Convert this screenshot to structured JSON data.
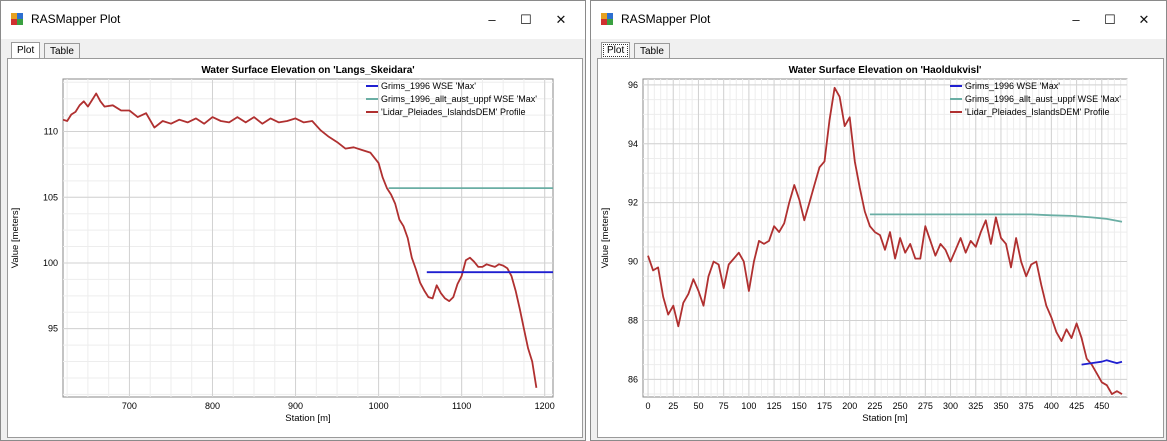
{
  "windows": [
    {
      "title": "RASMapper Plot",
      "controls": {
        "minimize": "–",
        "maximize": "☐",
        "close": "✕"
      },
      "tabs": [
        "Plot",
        "Table"
      ]
    },
    {
      "title": "RASMapper Plot",
      "controls": {
        "minimize": "–",
        "maximize": "☐",
        "close": "✕"
      },
      "tabs": [
        "Plot",
        "Table"
      ]
    }
  ],
  "chart_data": [
    {
      "type": "line",
      "title": "Water Surface Elevation on 'Langs_Skeidara'",
      "xlabel": "Station [m]",
      "ylabel": "Value [meters]",
      "xlim": [
        620,
        1210
      ],
      "ylim": [
        89.8,
        114
      ],
      "xticks": [
        700,
        800,
        900,
        1000,
        1100,
        1200
      ],
      "yticks": [
        95,
        100,
        105,
        110
      ],
      "grid": true,
      "legend_position": "top-right",
      "series": [
        {
          "name": "Grims_1996 WSE 'Max'",
          "color": "#1f1fd0",
          "x": [
            1058,
            1080,
            1100,
            1120,
            1140,
            1160,
            1175,
            1185,
            1200,
            1210
          ],
          "y": [
            99.3,
            99.3,
            99.3,
            99.3,
            99.3,
            99.3,
            99.3,
            99.3,
            99.3,
            99.3
          ]
        },
        {
          "name": "Grims_1996_allt_aust_uppf WSE 'Max'",
          "color": "#6aaea4",
          "x": [
            1012,
            1050,
            1100,
            1150,
            1210
          ],
          "y": [
            105.7,
            105.7,
            105.7,
            105.7,
            105.7
          ]
        },
        {
          "name": "'Lidar_Pleiades_IslandsDEM' Profile",
          "color": "#b03030",
          "x": [
            620,
            625,
            630,
            635,
            640,
            645,
            650,
            655,
            660,
            665,
            670,
            680,
            690,
            700,
            710,
            720,
            730,
            740,
            750,
            760,
            770,
            780,
            790,
            800,
            810,
            820,
            830,
            840,
            850,
            860,
            870,
            880,
            890,
            900,
            910,
            920,
            930,
            940,
            950,
            960,
            970,
            980,
            990,
            1000,
            1005,
            1010,
            1015,
            1020,
            1025,
            1030,
            1035,
            1040,
            1045,
            1050,
            1055,
            1060,
            1065,
            1070,
            1075,
            1080,
            1085,
            1090,
            1095,
            1100,
            1105,
            1110,
            1115,
            1120,
            1125,
            1130,
            1135,
            1140,
            1145,
            1150,
            1155,
            1160,
            1165,
            1170,
            1175,
            1180,
            1185,
            1190
          ],
          "y": [
            110.9,
            110.8,
            111.3,
            111.5,
            112.0,
            112.3,
            111.9,
            112.4,
            112.9,
            112.3,
            111.9,
            112.0,
            111.6,
            111.6,
            111.1,
            111.4,
            110.3,
            110.8,
            110.6,
            110.9,
            110.7,
            111.0,
            110.6,
            111.1,
            110.8,
            110.7,
            111.1,
            110.7,
            111.1,
            110.6,
            111.0,
            110.7,
            110.8,
            111.0,
            110.7,
            110.8,
            110.1,
            109.6,
            109.2,
            108.7,
            108.8,
            108.6,
            108.4,
            107.6,
            106.5,
            105.7,
            105.2,
            104.5,
            103.3,
            102.8,
            101.9,
            100.4,
            99.5,
            98.5,
            97.9,
            97.4,
            97.3,
            98.3,
            97.7,
            97.3,
            97.1,
            97.4,
            98.4,
            99.0,
            100.2,
            100.4,
            100.1,
            99.7,
            99.7,
            99.9,
            99.8,
            99.7,
            99.9,
            99.8,
            99.6,
            99.0,
            97.9,
            96.5,
            95.0,
            93.5,
            92.5,
            90.5
          ]
        }
      ]
    },
    {
      "type": "line",
      "title": "Water Surface Elevation on 'Haoldukvisl'",
      "xlabel": "Station [m]",
      "ylabel": "Value [meters]",
      "xlim": [
        -5,
        475
      ],
      "ylim": [
        85.4,
        96.2
      ],
      "xticks": [
        0,
        25,
        50,
        75,
        100,
        125,
        150,
        175,
        200,
        225,
        250,
        275,
        300,
        325,
        350,
        375,
        400,
        425,
        450
      ],
      "yticks": [
        86,
        88,
        90,
        92,
        94,
        96
      ],
      "grid": true,
      "legend_position": "top-right",
      "series": [
        {
          "name": "Grims_1996 WSE 'Max'",
          "color": "#1f1fd0",
          "x": [
            430,
            440,
            450,
            455,
            460,
            465,
            470
          ],
          "y": [
            86.5,
            86.55,
            86.6,
            86.65,
            86.6,
            86.55,
            86.6
          ]
        },
        {
          "name": "Grims_1996_allt_aust_uppf WSE 'Max'",
          "color": "#6aaea4",
          "x": [
            220,
            250,
            300,
            350,
            380,
            400,
            420,
            440,
            455,
            470
          ],
          "y": [
            91.6,
            91.6,
            91.6,
            91.6,
            91.6,
            91.57,
            91.55,
            91.5,
            91.45,
            91.35
          ]
        },
        {
          "name": "'Lidar_Pleiades_IslandsDEM' Profile",
          "color": "#b03030",
          "x": [
            0,
            5,
            10,
            15,
            20,
            25,
            30,
            35,
            40,
            45,
            50,
            55,
            60,
            65,
            70,
            75,
            80,
            85,
            90,
            95,
            100,
            105,
            110,
            115,
            120,
            125,
            130,
            135,
            140,
            145,
            150,
            155,
            160,
            165,
            170,
            175,
            180,
            185,
            190,
            195,
            200,
            205,
            210,
            215,
            220,
            225,
            230,
            235,
            240,
            245,
            250,
            255,
            260,
            265,
            270,
            275,
            280,
            285,
            290,
            295,
            300,
            305,
            310,
            315,
            320,
            325,
            330,
            335,
            340,
            345,
            350,
            355,
            360,
            365,
            370,
            375,
            380,
            385,
            390,
            395,
            400,
            405,
            410,
            415,
            420,
            425,
            430,
            435,
            440,
            445,
            450,
            455,
            460,
            465,
            470
          ],
          "y": [
            90.2,
            89.7,
            89.8,
            88.8,
            88.2,
            88.5,
            87.8,
            88.6,
            88.9,
            89.4,
            89.0,
            88.5,
            89.5,
            90.0,
            89.9,
            89.1,
            89.9,
            90.1,
            90.3,
            90.0,
            89.0,
            90.0,
            90.7,
            90.6,
            90.7,
            91.2,
            91.0,
            91.3,
            92.0,
            92.6,
            92.1,
            91.4,
            92.0,
            92.6,
            93.2,
            93.4,
            94.8,
            95.9,
            95.6,
            94.6,
            94.9,
            93.4,
            92.5,
            91.7,
            91.2,
            91.0,
            90.9,
            90.4,
            91.0,
            90.1,
            90.8,
            90.3,
            90.6,
            90.1,
            90.1,
            91.2,
            90.7,
            90.2,
            90.6,
            90.4,
            90.0,
            90.4,
            90.8,
            90.3,
            90.7,
            90.5,
            91.0,
            91.4,
            90.6,
            91.5,
            90.8,
            90.6,
            89.8,
            90.8,
            90.0,
            89.5,
            89.9,
            90.0,
            89.2,
            88.5,
            88.1,
            87.6,
            87.3,
            87.7,
            87.4,
            87.9,
            87.4,
            86.7,
            86.5,
            86.2,
            85.9,
            85.8,
            85.5,
            85.6,
            85.5
          ]
        }
      ]
    }
  ]
}
